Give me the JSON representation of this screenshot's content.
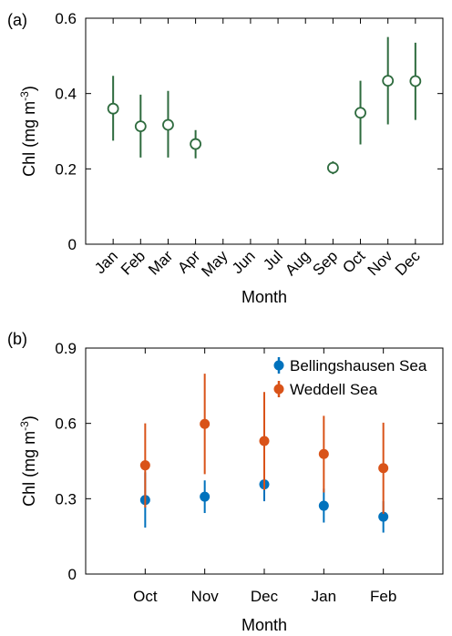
{
  "chart_data": [
    {
      "type": "scatter",
      "panel_label": "(a)",
      "title": "",
      "xlabel": "Month",
      "ylabel": "Chl (mg m",
      "ylabel_sup": "-3",
      "ylabel_close": ")",
      "categories": [
        "Jan",
        "Feb",
        "Mar",
        "Apr",
        "May",
        "Jun",
        "Jul",
        "Aug",
        "Sep",
        "Oct",
        "Nov",
        "Dec"
      ],
      "ylim": [
        0,
        0.6
      ],
      "yticks": [
        0,
        0.2,
        0.4,
        0.6
      ],
      "ytick_labels": [
        "0",
        "0.2",
        "0.4",
        "0.6"
      ],
      "grid": false,
      "series": [
        {
          "color": "#2e6b3e",
          "marker": "open-circle",
          "values": [
            0.36,
            0.313,
            0.317,
            0.266,
            null,
            null,
            null,
            null,
            0.203,
            0.349,
            0.434,
            0.433
          ],
          "lower": [
            0.275,
            0.23,
            0.23,
            0.228,
            null,
            null,
            null,
            null,
            0.186,
            0.265,
            0.318,
            0.33
          ],
          "upper": [
            0.447,
            0.397,
            0.407,
            0.303,
            null,
            null,
            null,
            null,
            0.22,
            0.434,
            0.55,
            0.535
          ]
        }
      ]
    },
    {
      "type": "scatter",
      "panel_label": "(b)",
      "title": "",
      "xlabel": "Month",
      "ylabel": "Chl (mg m",
      "ylabel_sup": "-3",
      "ylabel_close": ")",
      "categories": [
        "Oct",
        "Nov",
        "Dec",
        "Jan",
        "Feb"
      ],
      "ylim": [
        0,
        0.9
      ],
      "yticks": [
        0,
        0.3,
        0.6,
        0.9
      ],
      "ytick_labels": [
        "0",
        "0.3",
        "0.6",
        "0.9"
      ],
      "grid": false,
      "legend_position": "top-right",
      "series": [
        {
          "name": "Bellingshausen Sea",
          "color": "#0072bd",
          "marker": "filled-circle",
          "values": [
            0.295,
            0.308,
            0.357,
            0.272,
            0.228
          ],
          "lower": [
            0.185,
            0.243,
            0.29,
            0.205,
            0.165
          ],
          "upper": [
            0.405,
            0.373,
            0.425,
            0.34,
            0.29
          ]
        },
        {
          "name": "Weddell Sea",
          "color": "#d95319",
          "marker": "filled-circle",
          "values": [
            0.433,
            0.598,
            0.53,
            0.478,
            0.422
          ],
          "lower": [
            0.265,
            0.398,
            0.335,
            0.325,
            0.24
          ],
          "upper": [
            0.6,
            0.798,
            0.725,
            0.63,
            0.603
          ]
        }
      ]
    }
  ]
}
